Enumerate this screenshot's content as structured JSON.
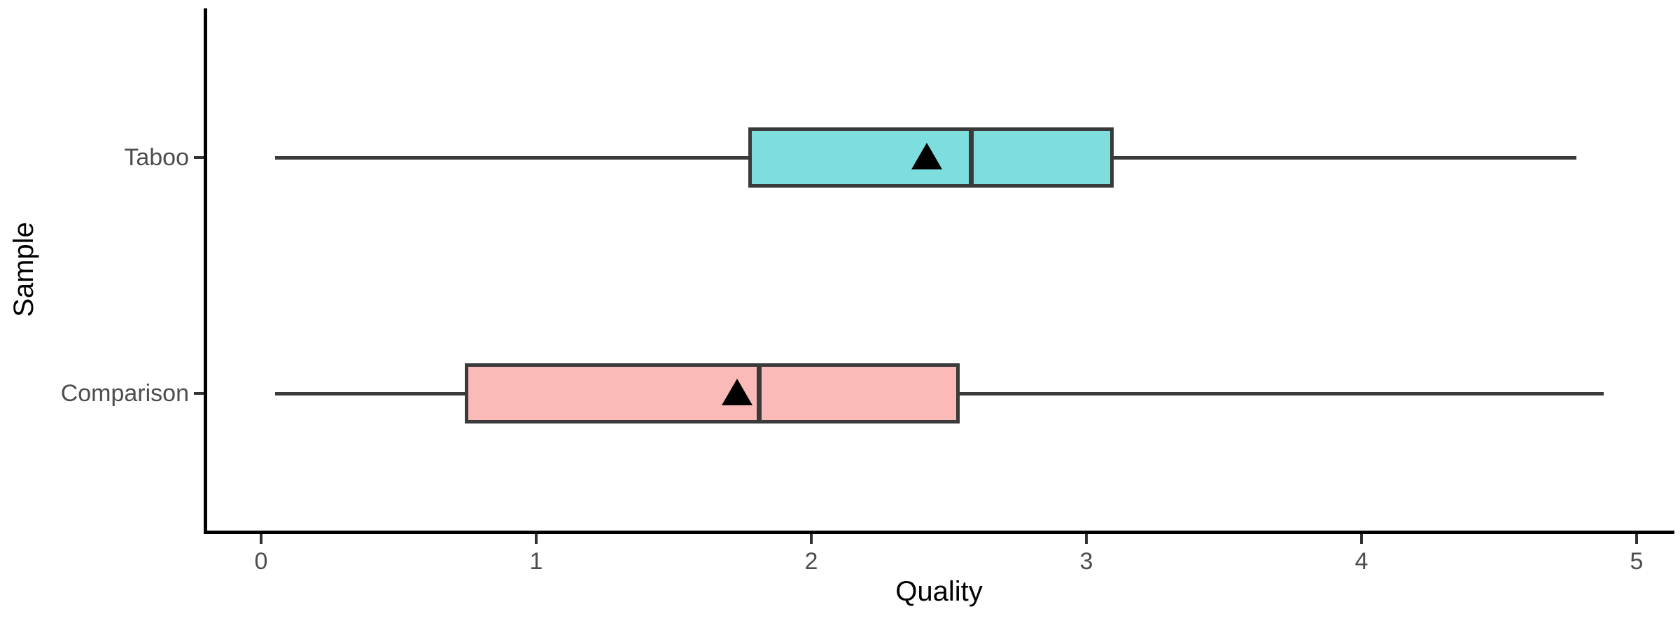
{
  "chart_data": {
    "type": "boxplot",
    "orientation": "horizontal",
    "title": "",
    "xlabel": "Quality",
    "ylabel": "Sample",
    "xlim": [
      0,
      5
    ],
    "xtick_values": [
      0,
      1,
      2,
      3,
      4,
      5
    ],
    "xtick_labels": [
      "0",
      "1",
      "2",
      "3",
      "4",
      "5"
    ],
    "grid": false,
    "legend": "none",
    "mean_marker": "filled-black-triangle-up",
    "box_stroke_color": "#3a3a3a",
    "axis_line_color": "#000000",
    "tick_label_color": "#4d4d4d",
    "series": [
      {
        "name": "Taboo",
        "fill": "#7edede",
        "whisker_min": 0.05,
        "q1": 1.77,
        "median": 2.58,
        "q3": 3.1,
        "whisker_max": 4.78,
        "mean": 2.42
      },
      {
        "name": "Comparison",
        "fill": "#fabab7",
        "whisker_min": 0.05,
        "q1": 0.74,
        "median": 1.81,
        "q3": 2.54,
        "whisker_max": 4.88,
        "mean": 1.73
      }
    ]
  }
}
